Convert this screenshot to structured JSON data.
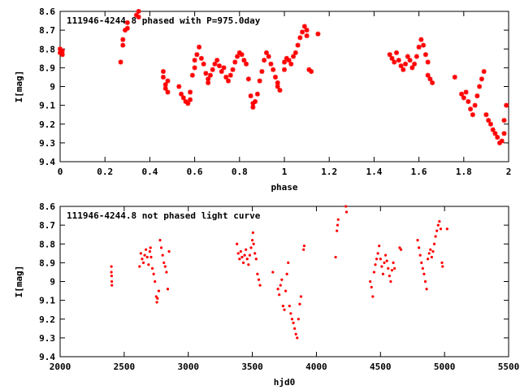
{
  "chart_data": [
    {
      "type": "scatter",
      "title": "111946-4244.8 phased with P=975.0day",
      "xlabel": "phase",
      "ylabel": "I[mag]",
      "xlim": [
        0,
        2
      ],
      "ylim": [
        9.4,
        8.6
      ],
      "y_inverted": true,
      "grid": false,
      "marker_color": "#ff0000",
      "marker": "asterisk",
      "xticks": [
        "0",
        "0.2",
        "0.4",
        "0.6",
        "0.8",
        "1",
        "1.2",
        "1.4",
        "1.6",
        "1.8",
        "2"
      ],
      "yticks": [
        "8.6",
        "8.7",
        "8.8",
        "8.9",
        "9",
        "9.1",
        "9.2",
        "9.3",
        "9.4"
      ],
      "points": [
        [
          0.0,
          8.82
        ],
        [
          0.0,
          8.8
        ],
        [
          0.01,
          8.83
        ],
        [
          0.01,
          8.81
        ],
        [
          0.27,
          8.87
        ],
        [
          0.28,
          8.78
        ],
        [
          0.28,
          8.75
        ],
        [
          0.29,
          8.7
        ],
        [
          0.3,
          8.69
        ],
        [
          0.3,
          8.66
        ],
        [
          0.34,
          8.62
        ],
        [
          0.35,
          8.63
        ],
        [
          0.35,
          8.6
        ],
        [
          0.46,
          8.92
        ],
        [
          0.46,
          8.95
        ],
        [
          0.47,
          8.99
        ],
        [
          0.47,
          9.01
        ],
        [
          0.48,
          9.03
        ],
        [
          0.48,
          8.97
        ],
        [
          0.53,
          9.0
        ],
        [
          0.54,
          9.04
        ],
        [
          0.55,
          9.06
        ],
        [
          0.56,
          9.08
        ],
        [
          0.57,
          9.09
        ],
        [
          0.58,
          9.07
        ],
        [
          0.58,
          9.03
        ],
        [
          0.59,
          8.94
        ],
        [
          0.6,
          8.9
        ],
        [
          0.6,
          8.86
        ],
        [
          0.61,
          8.83
        ],
        [
          0.62,
          8.79
        ],
        [
          0.63,
          8.85
        ],
        [
          0.64,
          8.88
        ],
        [
          0.65,
          8.93
        ],
        [
          0.66,
          8.98
        ],
        [
          0.66,
          8.96
        ],
        [
          0.67,
          8.94
        ],
        [
          0.68,
          8.91
        ],
        [
          0.69,
          8.88
        ],
        [
          0.7,
          8.86
        ],
        [
          0.71,
          8.89
        ],
        [
          0.72,
          8.92
        ],
        [
          0.73,
          8.9
        ],
        [
          0.74,
          8.95
        ],
        [
          0.75,
          8.97
        ],
        [
          0.76,
          8.94
        ],
        [
          0.77,
          8.91
        ],
        [
          0.78,
          8.87
        ],
        [
          0.79,
          8.84
        ],
        [
          0.8,
          8.82
        ],
        [
          0.81,
          8.83
        ],
        [
          0.82,
          8.86
        ],
        [
          0.83,
          8.88
        ],
        [
          0.84,
          8.96
        ],
        [
          0.85,
          9.05
        ],
        [
          0.86,
          9.09
        ],
        [
          0.86,
          9.11
        ],
        [
          0.87,
          9.08
        ],
        [
          0.88,
          9.04
        ],
        [
          0.89,
          8.97
        ],
        [
          0.9,
          8.92
        ],
        [
          0.91,
          8.86
        ],
        [
          0.92,
          8.82
        ],
        [
          0.93,
          8.84
        ],
        [
          0.94,
          8.88
        ],
        [
          0.95,
          8.91
        ],
        [
          0.96,
          8.95
        ],
        [
          0.97,
          8.98
        ],
        [
          0.97,
          9.0
        ],
        [
          0.98,
          9.02
        ],
        [
          1.0,
          8.91
        ],
        [
          1.0,
          8.87
        ],
        [
          1.01,
          8.85
        ],
        [
          1.02,
          8.86
        ],
        [
          1.03,
          8.88
        ],
        [
          1.04,
          8.84
        ],
        [
          1.05,
          8.82
        ],
        [
          1.06,
          8.78
        ],
        [
          1.07,
          8.74
        ],
        [
          1.08,
          8.71
        ],
        [
          1.09,
          8.68
        ],
        [
          1.1,
          8.7
        ],
        [
          1.1,
          8.73
        ],
        [
          1.11,
          8.91
        ],
        [
          1.12,
          8.92
        ],
        [
          1.15,
          8.72
        ],
        [
          1.47,
          8.83
        ],
        [
          1.48,
          8.85
        ],
        [
          1.49,
          8.87
        ],
        [
          1.5,
          8.82
        ],
        [
          1.51,
          8.86
        ],
        [
          1.52,
          8.89
        ],
        [
          1.53,
          8.91
        ],
        [
          1.54,
          8.88
        ],
        [
          1.55,
          8.84
        ],
        [
          1.56,
          8.86
        ],
        [
          1.57,
          8.9
        ],
        [
          1.58,
          8.88
        ],
        [
          1.59,
          8.84
        ],
        [
          1.6,
          8.79
        ],
        [
          1.61,
          8.75
        ],
        [
          1.62,
          8.78
        ],
        [
          1.63,
          8.83
        ],
        [
          1.64,
          8.87
        ],
        [
          1.64,
          8.94
        ],
        [
          1.65,
          8.96
        ],
        [
          1.66,
          8.98
        ],
        [
          1.76,
          8.95
        ],
        [
          1.79,
          9.04
        ],
        [
          1.8,
          9.06
        ],
        [
          1.81,
          9.03
        ],
        [
          1.82,
          9.08
        ],
        [
          1.83,
          9.12
        ],
        [
          1.84,
          9.15
        ],
        [
          1.85,
          9.1
        ],
        [
          1.86,
          9.05
        ],
        [
          1.87,
          9.0
        ],
        [
          1.88,
          8.96
        ],
        [
          1.89,
          8.92
        ],
        [
          1.9,
          9.15
        ],
        [
          1.91,
          9.18
        ],
        [
          1.92,
          9.2
        ],
        [
          1.93,
          9.23
        ],
        [
          1.94,
          9.25
        ],
        [
          1.95,
          9.27
        ],
        [
          1.96,
          9.3
        ],
        [
          1.97,
          9.29
        ],
        [
          1.98,
          9.25
        ],
        [
          1.98,
          9.18
        ],
        [
          1.99,
          9.1
        ]
      ]
    },
    {
      "type": "scatter",
      "title": "111946-4244.8 not phased light curve",
      "xlabel": "hjd0",
      "ylabel": "I[mag]",
      "xlim": [
        2000,
        5500
      ],
      "ylim": [
        9.4,
        8.6
      ],
      "y_inverted": true,
      "grid": false,
      "marker_color": "#ff0000",
      "marker": "dot",
      "xticks": [
        "2000",
        "2500",
        "3000",
        "3500",
        "4000",
        "4500",
        "5000",
        "5500"
      ],
      "yticks": [
        "8.6",
        "8.7",
        "8.8",
        "8.9",
        "9",
        "9.1",
        "9.2",
        "9.3",
        "9.4"
      ],
      "points": [
        [
          2400,
          8.92
        ],
        [
          2400,
          8.95
        ],
        [
          2402,
          8.97
        ],
        [
          2403,
          9.0
        ],
        [
          2404,
          9.02
        ],
        [
          2620,
          8.92
        ],
        [
          2630,
          8.85
        ],
        [
          2640,
          8.88
        ],
        [
          2650,
          8.9
        ],
        [
          2660,
          8.86
        ],
        [
          2670,
          8.83
        ],
        [
          2680,
          8.87
        ],
        [
          2690,
          8.91
        ],
        [
          2700,
          8.84
        ],
        [
          2705,
          8.82
        ],
        [
          2710,
          8.87
        ],
        [
          2720,
          8.93
        ],
        [
          2730,
          8.96
        ],
        [
          2740,
          9.0
        ],
        [
          2750,
          9.08
        ],
        [
          2755,
          9.11
        ],
        [
          2760,
          9.09
        ],
        [
          2770,
          9.05
        ],
        [
          2780,
          8.78
        ],
        [
          2790,
          8.82
        ],
        [
          2800,
          8.86
        ],
        [
          2810,
          8.9
        ],
        [
          2820,
          8.92
        ],
        [
          2830,
          8.95
        ],
        [
          2840,
          9.04
        ],
        [
          2850,
          8.84
        ],
        [
          3380,
          8.8
        ],
        [
          3390,
          8.85
        ],
        [
          3400,
          8.88
        ],
        [
          3410,
          8.84
        ],
        [
          3420,
          8.87
        ],
        [
          3430,
          8.9
        ],
        [
          3440,
          8.86
        ],
        [
          3450,
          8.83
        ],
        [
          3460,
          8.88
        ],
        [
          3470,
          8.91
        ],
        [
          3480,
          8.86
        ],
        [
          3490,
          8.82
        ],
        [
          3500,
          8.78
        ],
        [
          3505,
          8.74
        ],
        [
          3510,
          8.8
        ],
        [
          3520,
          8.85
        ],
        [
          3530,
          8.88
        ],
        [
          3540,
          8.96
        ],
        [
          3550,
          8.99
        ],
        [
          3560,
          9.02
        ],
        [
          3660,
          8.95
        ],
        [
          3700,
          9.04
        ],
        [
          3710,
          9.07
        ],
        [
          3720,
          9.02
        ],
        [
          3730,
          8.99
        ],
        [
          3740,
          9.13
        ],
        [
          3750,
          9.15
        ],
        [
          3760,
          9.05
        ],
        [
          3770,
          8.96
        ],
        [
          3780,
          8.9
        ],
        [
          3790,
          9.13
        ],
        [
          3800,
          9.17
        ],
        [
          3810,
          9.2
        ],
        [
          3820,
          9.22
        ],
        [
          3830,
          9.25
        ],
        [
          3840,
          9.28
        ],
        [
          3850,
          9.3
        ],
        [
          3860,
          9.2
        ],
        [
          3870,
          9.12
        ],
        [
          3880,
          9.08
        ],
        [
          3900,
          8.83
        ],
        [
          3905,
          8.81
        ],
        [
          4150,
          8.87
        ],
        [
          4160,
          8.73
        ],
        [
          4165,
          8.7
        ],
        [
          4170,
          8.67
        ],
        [
          4230,
          8.6
        ],
        [
          4235,
          8.63
        ],
        [
          4420,
          9.0
        ],
        [
          4430,
          9.03
        ],
        [
          4440,
          9.08
        ],
        [
          4450,
          8.95
        ],
        [
          4460,
          8.91
        ],
        [
          4470,
          8.88
        ],
        [
          4480,
          8.85
        ],
        [
          4490,
          8.81
        ],
        [
          4500,
          8.88
        ],
        [
          4510,
          8.92
        ],
        [
          4520,
          8.96
        ],
        [
          4530,
          8.9
        ],
        [
          4540,
          8.86
        ],
        [
          4550,
          8.89
        ],
        [
          4560,
          8.93
        ],
        [
          4570,
          8.97
        ],
        [
          4580,
          9.0
        ],
        [
          4590,
          8.94
        ],
        [
          4600,
          8.9
        ],
        [
          4610,
          8.93
        ],
        [
          4650,
          8.82
        ],
        [
          4660,
          8.83
        ],
        [
          4790,
          8.78
        ],
        [
          4800,
          8.82
        ],
        [
          4810,
          8.86
        ],
        [
          4820,
          8.9
        ],
        [
          4830,
          8.93
        ],
        [
          4840,
          8.96
        ],
        [
          4850,
          9.0
        ],
        [
          4860,
          9.04
        ],
        [
          4870,
          8.88
        ],
        [
          4880,
          8.85
        ],
        [
          4890,
          8.83
        ],
        [
          4900,
          8.87
        ],
        [
          4910,
          8.84
        ],
        [
          4920,
          8.8
        ],
        [
          4930,
          8.76
        ],
        [
          4940,
          8.73
        ],
        [
          4950,
          8.7
        ],
        [
          4960,
          8.68
        ],
        [
          4970,
          8.72
        ],
        [
          4980,
          8.9
        ],
        [
          4985,
          8.92
        ],
        [
          5020,
          8.72
        ]
      ]
    }
  ]
}
